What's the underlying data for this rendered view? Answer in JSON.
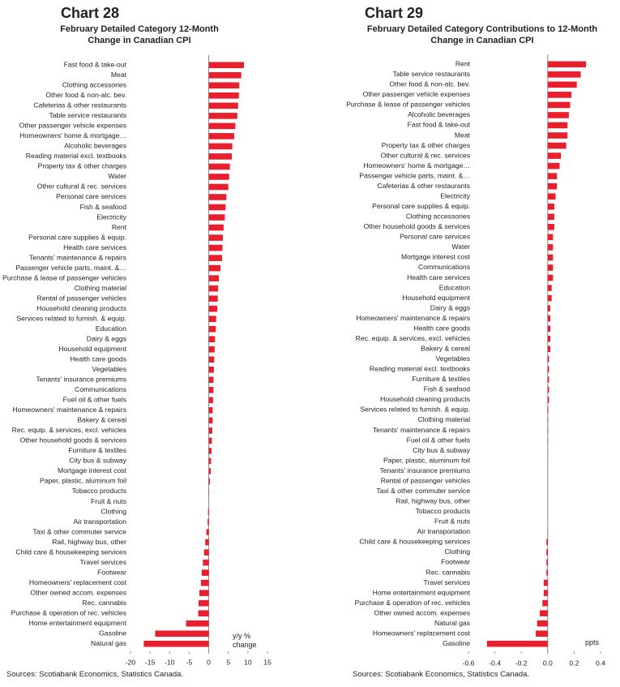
{
  "chart_data": [
    {
      "type": "bar",
      "horizontal": true,
      "label": "Chart 28",
      "title": "February Detailed Category 12-Month Change in Canadian CPI",
      "annotation": "y/y % change",
      "source": "Sources: Scotiabank Economics, Statistics Canada.",
      "color": "#e8202e",
      "categories": [
        "Fast food & take-out",
        "Meat",
        "Clothing accessories",
        "Other food & non-alc. bev.",
        "Cafeterias & other restaurants",
        "Table service restaurants",
        "Other passenger vehicle expenses",
        "Homeowners' home & mortgage…",
        "Alcoholic beverages",
        "Reading material excl. textbooks",
        "Property tax & other charges",
        "Water",
        "Other cultural & rec. services",
        "Personal care services",
        "Fish & seafood",
        "Electricity",
        "Rent",
        "Personal care supplies & equip.",
        "Health care services",
        "Tenants' maintenance & repairs",
        "Passenger vehicle parts, maint. &…",
        "Purchase & lease of passenger vehicles",
        "Clothing material",
        "Rental of passenger vehicles",
        "Household cleaning products",
        "Services related to furnish. & equip.",
        "Education",
        "Dairy & eggs",
        "Household equipment",
        "Health care goods",
        "Vegetables",
        "Tenants' insurance premiums",
        "Communications",
        "Fuel oil & other fuels",
        "Homeowners' maintenance & repairs",
        "Bakery & cereal",
        "Rec. equip. & services, excl. vehicles",
        "Other household goods & services",
        "Furniture & textiles",
        "City bus & subway",
        "Mortgage interest cost",
        "Paper, plastic, aluminum foil",
        "Tobacco products",
        "Fruit & nuts",
        "Clothing",
        "Air transportation",
        "Taxi & other commuter service",
        "Rail, highway bus, other",
        "Child care & housekeeping services",
        "Travel services",
        "Footwear",
        "Homeowners' replacement cost",
        "Other owned accom. expenses",
        "Rec. cannabis",
        "Purchase & operation of rec. vehicles",
        "Home entertainment equipment",
        "Gasoline",
        "Natural gas"
      ],
      "values": [
        9.0,
        8.3,
        7.8,
        7.7,
        7.5,
        7.3,
        6.8,
        6.5,
        6.0,
        5.9,
        5.4,
        5.2,
        5.0,
        4.5,
        4.3,
        4.1,
        3.8,
        3.6,
        3.5,
        3.4,
        3.0,
        2.6,
        2.4,
        2.3,
        2.2,
        1.9,
        1.8,
        1.6,
        1.5,
        1.4,
        1.3,
        1.2,
        1.2,
        1.1,
        1.0,
        1.0,
        0.9,
        0.8,
        0.7,
        0.6,
        0.5,
        0.3,
        0.1,
        0.0,
        -0.2,
        -0.3,
        -0.6,
        -0.9,
        -1.2,
        -1.5,
        -1.8,
        -2.0,
        -2.4,
        -2.6,
        -2.7,
        -5.8,
        -13.7,
        -16.6
      ],
      "xlim": [
        -20,
        15
      ],
      "xticks": [
        -20,
        -15,
        -10,
        -5,
        0,
        5,
        10,
        15
      ]
    },
    {
      "type": "bar",
      "horizontal": true,
      "label": "Chart 29",
      "title": "February Detailed Category Contributions to 12-Month Change in Canadian CPI",
      "annotation": "ppts",
      "source": "Sources: Scotiabank Economics, Statistics Canada.",
      "color": "#e8202e",
      "categories": [
        "Rent",
        "Table service restaurants",
        "Other food & non-alc. bev.",
        "Other passenger vehicle expenses",
        "Purchase & lease of passenger vehicles",
        "Alcoholic beverages",
        "Fast food & take-out",
        "Meat",
        "Property tax & other charges",
        "Other cultural & rec. services",
        "Homeowners' home & mortgage…",
        "Passenger vehicle parts, maint. &…",
        "Cafeterias & other restaurants",
        "Electricity",
        "Personal care supplies & equip.",
        "Clothing accessories",
        "Other household goods & services",
        "Personal care services",
        "Water",
        "Mortgage interest cost",
        "Communications",
        "Health care services",
        "Education",
        "Household equipment",
        "Dairy & eggs",
        "Homeowners' maintenance & repairs",
        "Health care goods",
        "Rec. equip. & services, excl. vehicles",
        "Bakery & cereal",
        "Vegetables",
        "Reading material excl. textbooks",
        "Furniture & textiles",
        "Fish & seafood",
        "Household cleaning products",
        "Services related to furnish. & equip.",
        "Clothing material",
        "Tenants' maintenance & repairs",
        "Fuel oil & other fuels",
        "City bus & subway",
        "Paper, plastic, aluminum foil",
        "Tenants' insurance premiums",
        "Rental of passenger vehicles",
        "Taxi & other commuter service",
        "Rail, highway bus, other",
        "Tobacco products",
        "Fruit & nuts",
        "Air transportation",
        "Child care & housekeeping services",
        "Clothing",
        "Footwear",
        "Rec. cannabis",
        "Travel services",
        "Home entertainment equipment",
        "Purchase & operation of rec. vehicles",
        "Other owned accom. expenses",
        "Natural gas",
        "Homeowners' replacement cost",
        "Gasoline"
      ],
      "values": [
        0.29,
        0.25,
        0.22,
        0.18,
        0.17,
        0.16,
        0.15,
        0.15,
        0.14,
        0.1,
        0.09,
        0.07,
        0.07,
        0.06,
        0.05,
        0.05,
        0.05,
        0.04,
        0.04,
        0.04,
        0.04,
        0.04,
        0.03,
        0.03,
        0.02,
        0.02,
        0.02,
        0.02,
        0.02,
        0.01,
        0.01,
        0.01,
        0.01,
        0.01,
        0.005,
        0.003,
        0.003,
        0.002,
        0.002,
        0.001,
        0.001,
        0.001,
        0.0,
        0.0,
        0.0,
        0.0,
        -0.002,
        -0.01,
        -0.01,
        -0.01,
        -0.01,
        -0.03,
        -0.03,
        -0.04,
        -0.06,
        -0.08,
        -0.09,
        -0.46
      ],
      "xlim": [
        -0.6,
        0.4
      ],
      "xticks": [
        -0.6,
        -0.4,
        -0.2,
        {
          "value": 0,
          "label": "0.0"
        },
        0.2,
        0.4
      ]
    }
  ]
}
